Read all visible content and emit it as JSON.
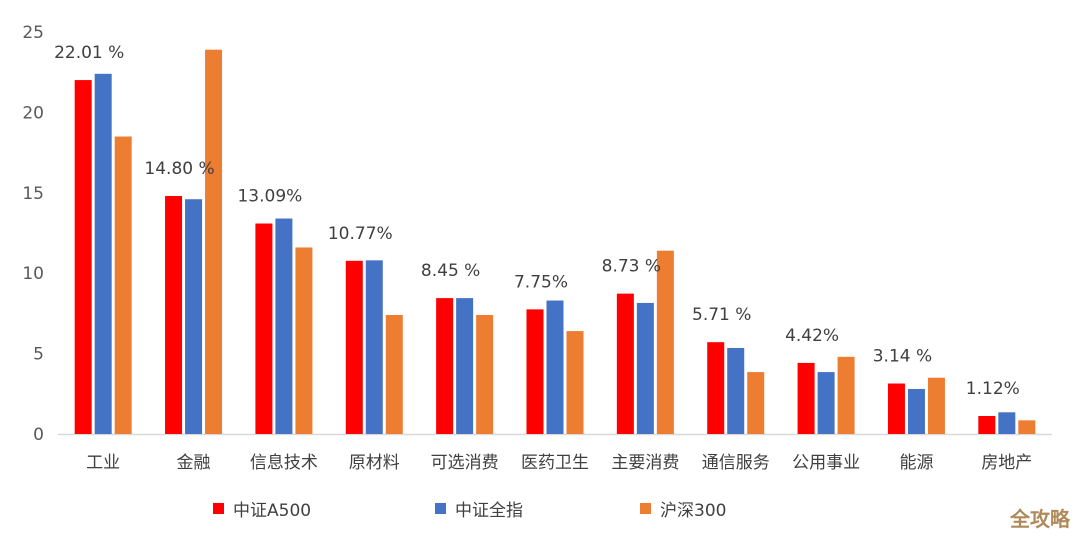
{
  "chart_data": {
    "type": "bar",
    "categories": [
      "工业",
      "金融",
      "信息技术",
      "原材料",
      "可选消费",
      "医药卫生",
      "主要消费",
      "通信服务",
      "公用事业",
      "能源",
      "房地产"
    ],
    "series": [
      {
        "name": "中证A500",
        "color": "#ff0000",
        "values": [
          22.01,
          14.8,
          13.09,
          10.77,
          8.45,
          7.75,
          8.73,
          5.71,
          4.42,
          3.14,
          1.12
        ]
      },
      {
        "name": "中证全指",
        "color": "#4472c4",
        "values": [
          22.4,
          14.6,
          13.4,
          10.8,
          8.45,
          8.3,
          8.15,
          5.35,
          3.85,
          2.8,
          1.35
        ]
      },
      {
        "name": "沪深300",
        "color": "#ed7d31",
        "values": [
          18.5,
          23.9,
          11.6,
          7.4,
          7.4,
          6.4,
          11.4,
          3.85,
          4.8,
          3.5,
          0.85
        ]
      }
    ],
    "data_labels": [
      "22.01 %",
      "14.80 %",
      "13.09%",
      "10.77%",
      "8.45 %",
      "7.75%",
      "8.73 %",
      "5.71 %",
      "4.42%",
      "3.14 %",
      "1.12%"
    ],
    "yticks": [
      "0",
      "5",
      "10",
      "15",
      "20",
      "25"
    ],
    "ylim": [
      0,
      25
    ],
    "grid": false,
    "legend_position": "bottom",
    "title": "",
    "xlabel": "",
    "ylabel": ""
  },
  "watermark": "全攻略"
}
